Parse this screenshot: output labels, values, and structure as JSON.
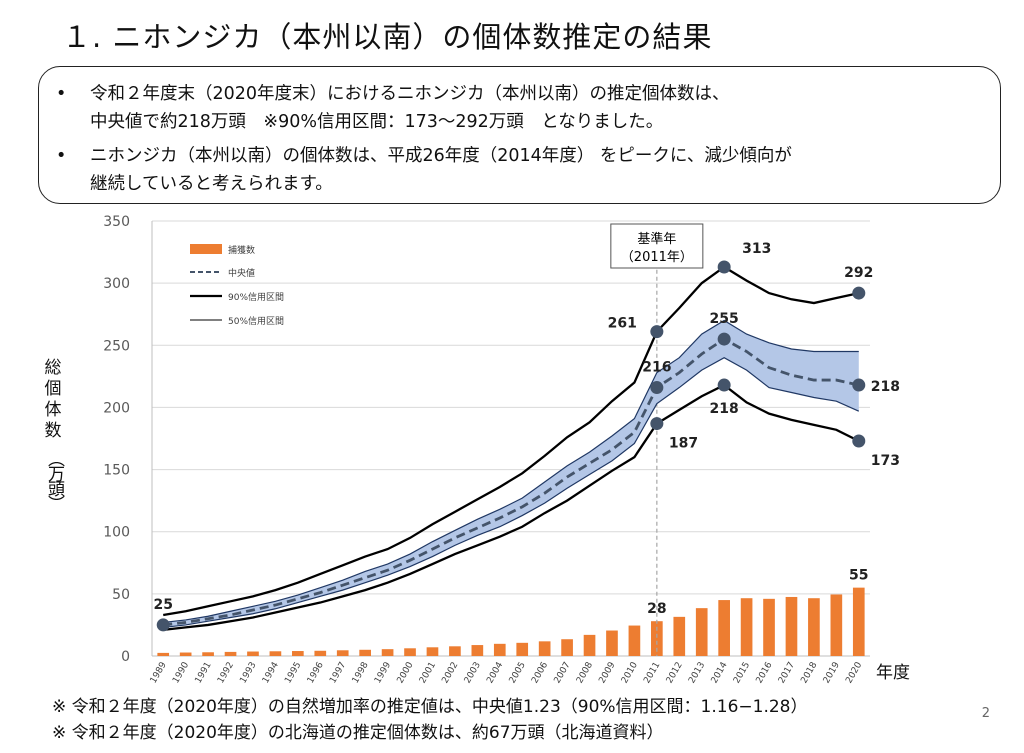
{
  "title": "１. ニホンジカ（本州以南）の個体数推定の結果",
  "summary": {
    "bullet_glyph": "•",
    "b1_line1": "令和２年度末（2020年度末）におけるニホンジカ（本州以南）の推定個体数は、",
    "b1_line2": "中央値で約218万頭　※90%信用区間：173～292万頭　となりました。",
    "b2_line1": "ニホンジカ（本州以南）の個体数は、平成26年度（2014年度） をピークに、減少傾向が",
    "b2_line2": "継続していると考えられます。"
  },
  "footnotes": [
    "※ 令和２年度（2020年度）の自然増加率の推定値は、中央値1.23（90%信用区間：1.16−1.28）",
    "※ 令和２年度（2020年度）の北海道の推定個体数は、約67万頭（北海道資料）"
  ],
  "page_number": "2",
  "chart_data": {
    "type": "bar+line",
    "ylabel_chars": [
      "総",
      "個",
      "体",
      "数"
    ],
    "ylabel_unit": "（万頭）",
    "xlabel": "年度",
    "ylim": [
      0,
      350
    ],
    "yticks": [
      0,
      50,
      100,
      150,
      200,
      250,
      300,
      350
    ],
    "grid": true,
    "legend_position": "top-left",
    "legend": {
      "bars": "捕獲数",
      "median": "中央値",
      "ci90": "90%信用区間",
      "ci50": "50%信用区間"
    },
    "reference": {
      "year": "2011",
      "label_line1": "基準年",
      "label_line2": "（2011年）"
    },
    "x": [
      "1989",
      "1990",
      "1991",
      "1992",
      "1993",
      "1994",
      "1995",
      "1996",
      "1997",
      "1998",
      "1999",
      "2000",
      "2001",
      "2002",
      "2003",
      "2004",
      "2005",
      "2006",
      "2007",
      "2008",
      "2009",
      "2010",
      "2011",
      "2012",
      "2013",
      "2014",
      "2015",
      "2016",
      "2017",
      "2018",
      "2019",
      "2020"
    ],
    "series": [
      {
        "name": "捕獲数",
        "values": [
          2.5,
          2.8,
          3,
          3.3,
          3.6,
          3.8,
          4,
          4.2,
          4.6,
          5,
          5.5,
          6.2,
          7,
          7.8,
          8.8,
          9.8,
          10.6,
          11.8,
          13.5,
          17,
          20.5,
          24.5,
          28,
          31.5,
          38.5,
          45,
          46.5,
          46,
          47.5,
          46.5,
          49.5,
          55
        ]
      },
      {
        "name": "中央値",
        "values": [
          25,
          27,
          30,
          33,
          37,
          41,
          46,
          51,
          57,
          63,
          69,
          77,
          86,
          95,
          103,
          111,
          120,
          131,
          144,
          155,
          166,
          180,
          216,
          228,
          243,
          255,
          245,
          232,
          226,
          222,
          222,
          218
        ]
      },
      {
        "name": "90%信用区間（上限）",
        "values": [
          33,
          36,
          40,
          44,
          48,
          53,
          59,
          66,
          73,
          80,
          86,
          95,
          106,
          116,
          126,
          136,
          147,
          161,
          176,
          188,
          205,
          220,
          261,
          280,
          300,
          313,
          302,
          292,
          287,
          284,
          288,
          292
        ]
      },
      {
        "name": "90%信用区間（下限）",
        "values": [
          21,
          23,
          25,
          28,
          31,
          35,
          39,
          43,
          48,
          53,
          59,
          66,
          74,
          82,
          89,
          96,
          104,
          115,
          125,
          137,
          149,
          160,
          187,
          198,
          209,
          218,
          204,
          195,
          190,
          186,
          182,
          173
        ]
      },
      {
        "name": "50%信用区間（上限）",
        "values": [
          27,
          29,
          32,
          36,
          40,
          44,
          49,
          55,
          61,
          68,
          74,
          82,
          92,
          101,
          110,
          118,
          127,
          140,
          153,
          164,
          177,
          191,
          228,
          240,
          259,
          270,
          259,
          252,
          247,
          245,
          245,
          245
        ]
      },
      {
        "name": "50%信用区間（下限）",
        "values": [
          23,
          25,
          28,
          31,
          34,
          38,
          43,
          48,
          53,
          59,
          65,
          72,
          80,
          89,
          97,
          104,
          113,
          123,
          135,
          146,
          157,
          171,
          203,
          216,
          230,
          240,
          230,
          216,
          212,
          208,
          205,
          197
        ]
      }
    ],
    "annotations": [
      {
        "year": "1989",
        "value": 25,
        "text": "25",
        "pos": "above"
      },
      {
        "year": "2011",
        "value": 261,
        "text": "261",
        "pos": "left"
      },
      {
        "year": "2011",
        "value": 216,
        "text": "216",
        "pos": "above"
      },
      {
        "year": "2011",
        "value": 187,
        "text": "187",
        "pos": "below-right"
      },
      {
        "year": "2014",
        "value": 313,
        "text": "313",
        "pos": "upper-right"
      },
      {
        "year": "2014",
        "value": 255,
        "text": "255",
        "pos": "above"
      },
      {
        "year": "2014",
        "value": 218,
        "text": "218",
        "pos": "below"
      },
      {
        "year": "2020",
        "value": 292,
        "text": "292",
        "pos": "above"
      },
      {
        "year": "2020",
        "value": 218,
        "text": "218",
        "pos": "right"
      },
      {
        "year": "2020",
        "value": 173,
        "text": "173",
        "pos": "below-right"
      }
    ],
    "bar_labels": [
      {
        "year": "2011",
        "text": "28"
      },
      {
        "year": "2020",
        "text": "55"
      }
    ],
    "colors": {
      "bar": "#ed7d31",
      "band50": "#b4c7e7",
      "band_edge": "#203864",
      "marker": "#44546a",
      "line": "#000000",
      "median": "#44546a",
      "grid": "#d9d9d9",
      "ref_line": "#a6a6a6"
    }
  }
}
